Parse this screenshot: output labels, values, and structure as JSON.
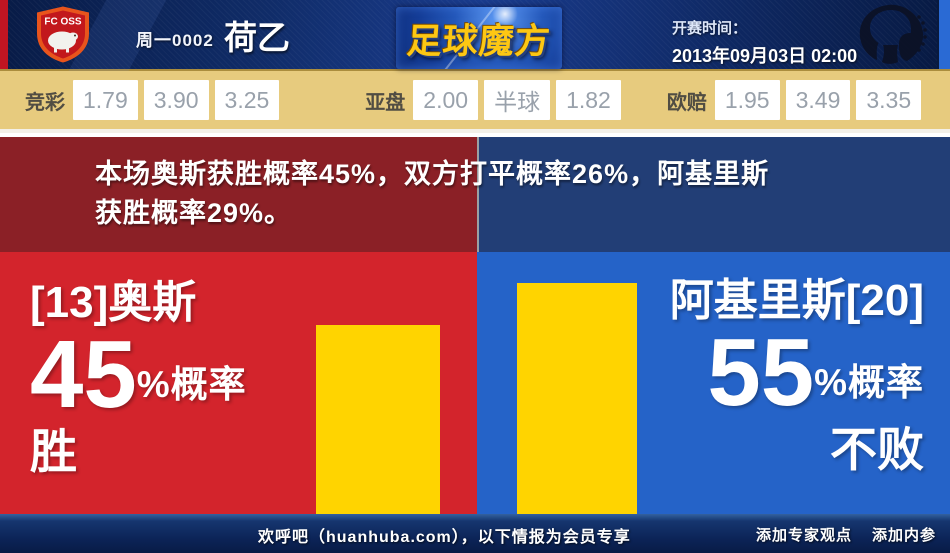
{
  "header": {
    "home_badge_text": "FC OSS",
    "match_code": "周一0002",
    "league": "荷乙",
    "brand": "足球魔方",
    "kickoff_label": "开赛时间：",
    "kickoff_time": "2013年09月03日 02:00"
  },
  "odds": {
    "jingcai": {
      "label": "竞彩",
      "values": [
        "1.79",
        "3.90",
        "3.25"
      ]
    },
    "asian": {
      "label": "亚盘",
      "values": [
        "2.00",
        "半球",
        "1.82"
      ]
    },
    "euro": {
      "label": "欧赔",
      "values": [
        "1.95",
        "3.49",
        "3.35"
      ]
    }
  },
  "summary": {
    "line1": "本场奥斯获胜概率45%，双方打平概率26%，阿基里斯",
    "line2": "获胜概率29%。"
  },
  "home_team": {
    "name_with_rank": "[13]奥斯",
    "probability": "45",
    "probability_suffix": "%概率",
    "outcome": "胜"
  },
  "away_team": {
    "name_with_rank": "阿基里斯[20]",
    "probability": "55",
    "probability_suffix": "%概率",
    "outcome": "不败"
  },
  "probabilities": {
    "home_win_pct": 45,
    "draw_pct": 26,
    "away_win_pct": 29,
    "away_unbeaten_pct": 55
  },
  "footer": {
    "promo": "欢呼吧（huanhuba.com），以下情报为会员专享",
    "links": [
      "添加专家观点",
      "添加内参"
    ]
  },
  "colors": {
    "home_red": "#d3242c",
    "away_blue": "#2563c8",
    "summary_dark_red": "#8b2026",
    "summary_dark_blue": "#223e76",
    "bar_yellow": "#ffd400",
    "odds_bg_tan": "#e7cb7e",
    "brand_gold": "#fdc713"
  }
}
